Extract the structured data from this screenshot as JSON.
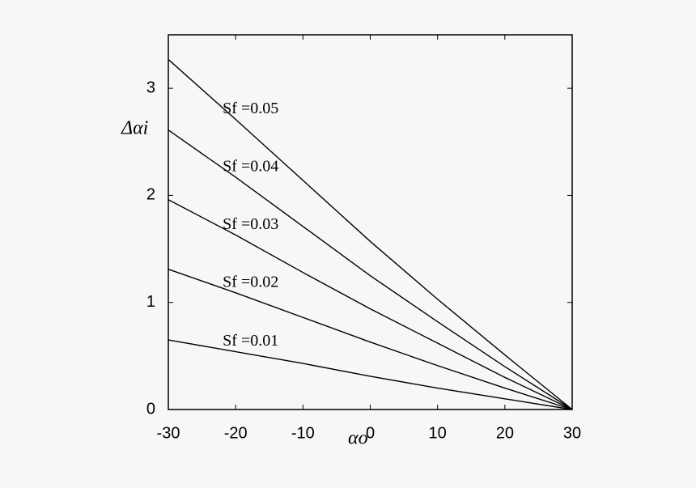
{
  "chart_data": {
    "type": "line",
    "xlabel": "αo",
    "ylabel": "Δαi",
    "x": [
      -30,
      -20,
      -10,
      0,
      10,
      20,
      30
    ],
    "series": [
      {
        "name": "Sf =0.05",
        "color": "#000000",
        "values": [
          3.27,
          2.71,
          2.14,
          1.57,
          1.03,
          0.51,
          0
        ]
      },
      {
        "name": "Sf =0.04",
        "color": "#000000",
        "values": [
          2.61,
          2.17,
          1.71,
          1.25,
          0.82,
          0.4,
          0
        ]
      },
      {
        "name": "Sf =0.03",
        "color": "#000000",
        "values": [
          1.96,
          1.63,
          1.28,
          0.94,
          0.62,
          0.3,
          0
        ]
      },
      {
        "name": "Sf =0.02",
        "color": "#000000",
        "values": [
          1.31,
          1.09,
          0.86,
          0.63,
          0.41,
          0.2,
          0
        ]
      },
      {
        "name": "Sf =0.01",
        "color": "#000000",
        "values": [
          0.65,
          0.54,
          0.43,
          0.31,
          0.2,
          0.1,
          0
        ]
      }
    ],
    "xlim": [
      -30,
      30
    ],
    "xticks": [
      -30,
      -20,
      -10,
      0,
      10,
      20,
      30
    ],
    "ylim": [
      0,
      3.5
    ],
    "yticks": [
      0,
      1,
      2,
      3
    ],
    "grid": false
  }
}
